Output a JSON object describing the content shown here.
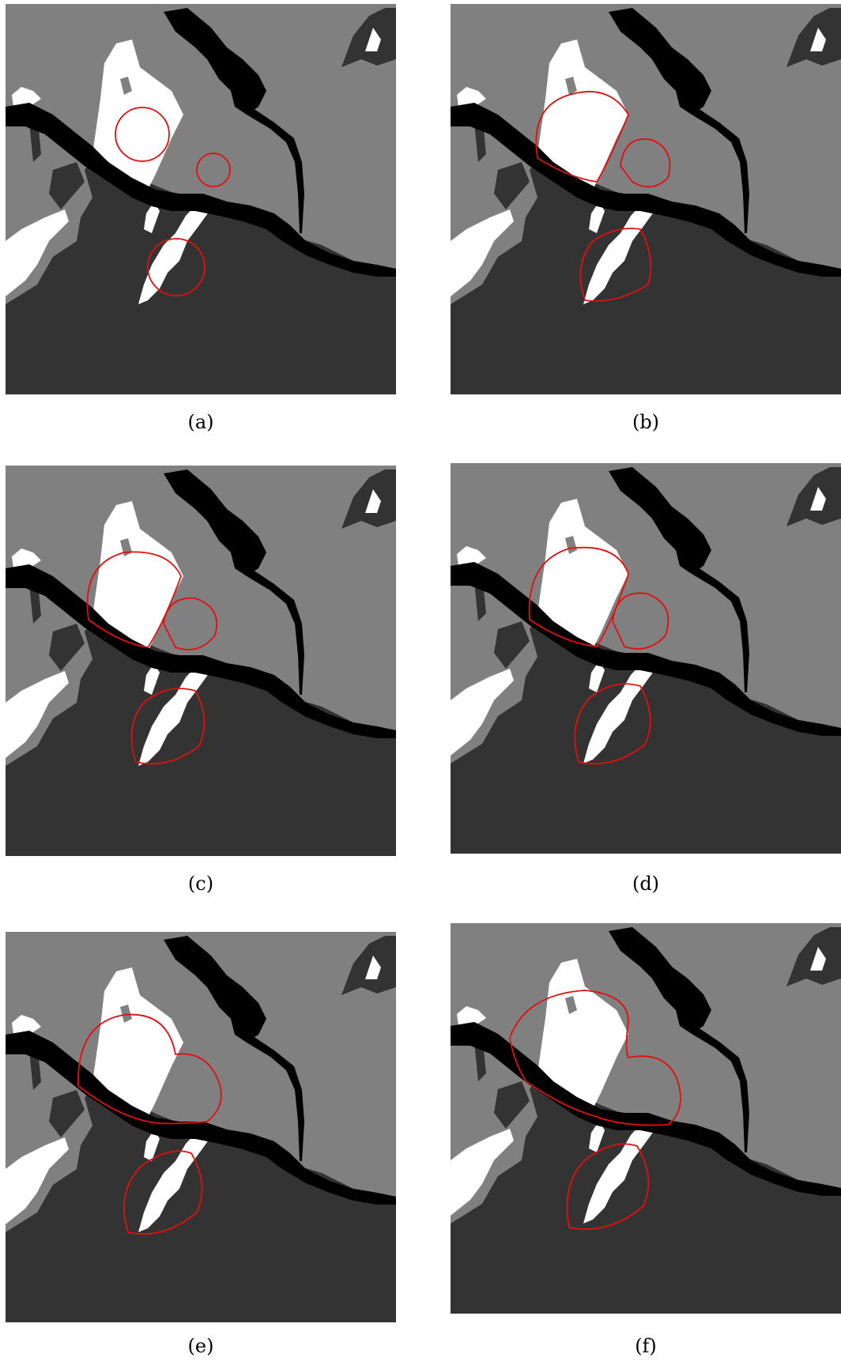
{
  "colors": {
    "background_region": "#808080",
    "dark_region": "#333333",
    "water": "#000000",
    "white_region": "#ffffff",
    "contour": "#e01010"
  },
  "panels": [
    {
      "id": "a",
      "caption": "(a)",
      "stage": "initial"
    },
    {
      "id": "b",
      "caption": "(b)",
      "stage": "evolving"
    },
    {
      "id": "c",
      "caption": "(c)",
      "stage": "evolving"
    },
    {
      "id": "d",
      "caption": "(d)",
      "stage": "evolving"
    },
    {
      "id": "e",
      "caption": "(e)",
      "stage": "evolving"
    },
    {
      "id": "f",
      "caption": "(f)",
      "stage": "final"
    }
  ]
}
